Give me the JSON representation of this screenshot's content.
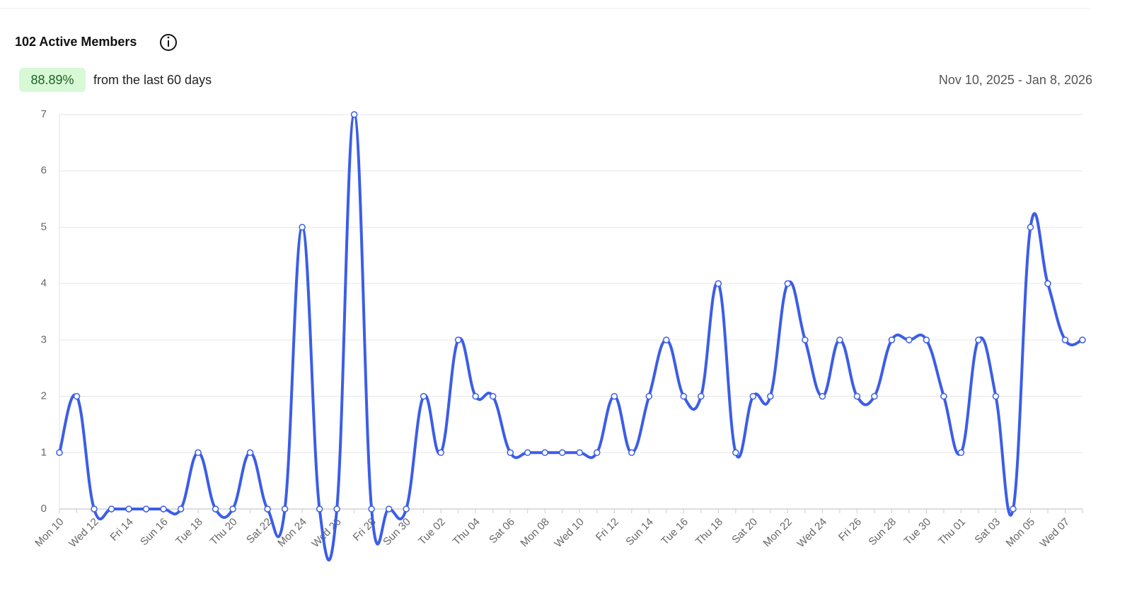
{
  "header": {
    "title": "102 Active Members",
    "badge": "88.89%",
    "subtitle": "from the last 60 days",
    "date_range": "Nov 10, 2025 - Jan 8, 2026"
  },
  "chart_data": {
    "type": "line",
    "categories": [
      "Mon 10",
      null,
      "Wed 12",
      null,
      "Fri 14",
      null,
      "Sun 16",
      null,
      "Tue 18",
      null,
      "Thu 20",
      null,
      "Sat 22",
      null,
      "Mon 24",
      null,
      "Wed 26",
      null,
      "Fri 28",
      null,
      "Sun 30",
      null,
      "Tue 02",
      null,
      "Thu 04",
      null,
      "Sat 06",
      null,
      "Mon 08",
      null,
      "Wed 10",
      null,
      "Fri 12",
      null,
      "Sun 14",
      null,
      "Tue 16",
      null,
      "Thu 18",
      null,
      "Sat 20",
      null,
      "Mon 22",
      null,
      "Wed 24",
      null,
      "Fri 26",
      null,
      "Sun 28",
      null,
      "Tue 30",
      null,
      "Thu 01",
      null,
      "Sat 03",
      null,
      "Mon 05",
      null,
      "Wed 07",
      null
    ],
    "values": [
      1,
      2,
      0,
      0,
      0,
      0,
      0,
      0,
      1,
      0,
      0,
      1,
      0,
      0,
      5,
      0,
      0,
      7,
      0,
      0,
      0,
      2,
      1,
      3,
      2,
      2,
      1,
      1,
      1,
      1,
      1,
      1,
      2,
      1,
      2,
      3,
      2,
      2,
      4,
      1,
      2,
      2,
      4,
      3,
      2,
      3,
      2,
      2,
      3,
      3,
      3,
      2,
      1,
      3,
      2,
      0,
      5,
      4,
      3,
      3
    ],
    "color": "#3b5de7",
    "ylim": [
      0,
      7
    ],
    "yticks": [
      0,
      1,
      2,
      3,
      4,
      5,
      6,
      7
    ],
    "grid": true
  }
}
